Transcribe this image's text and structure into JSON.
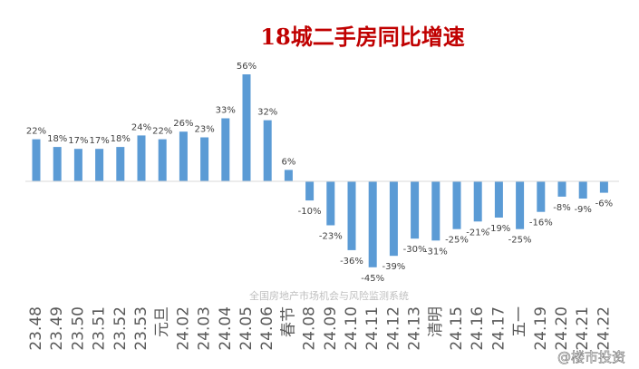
{
  "chart_data": {
    "type": "bar",
    "title": "18城二手房同比增速",
    "source": "全国房地产市场机会与风险监测系统",
    "watermark": "@楼市投资",
    "categories": [
      "23.48",
      "23.49",
      "23.50",
      "23.51",
      "23.52",
      "23.53",
      "元旦",
      "24.02",
      "24.03",
      "24.04",
      "24.05",
      "24.06",
      "春节",
      "24.08",
      "24.09",
      "24.10",
      "24.11",
      "24.12",
      "24.13",
      "清明",
      "24.15",
      "24.16",
      "24.17",
      "五一",
      "24.19",
      "24.20",
      "24.21",
      "24.22"
    ],
    "values": [
      22,
      18,
      17,
      17,
      18,
      24,
      22,
      26,
      23,
      33,
      56,
      32,
      6,
      -10,
      -23,
      -36,
      -45,
      -39,
      -30,
      -31,
      -25,
      -21,
      -19,
      -25,
      -16,
      -8,
      -9,
      -6
    ],
    "value_labels": [
      "22%",
      "18%",
      "17%",
      "17%",
      "18%",
      "24%",
      "22%",
      "26%",
      "23%",
      "33%",
      "56%",
      "32%",
      "6%",
      "-10%",
      "-23%",
      "-36%",
      "-45%",
      "-39%",
      "-30%",
      "-31%",
      "-25%",
      "-21%",
      "-19%",
      "-25%",
      "-16%",
      "-8%",
      "-9%",
      "-6%"
    ],
    "bar_color": "#5b9bd5",
    "title_color": "#c00000",
    "grid": false,
    "legend": "none"
  }
}
